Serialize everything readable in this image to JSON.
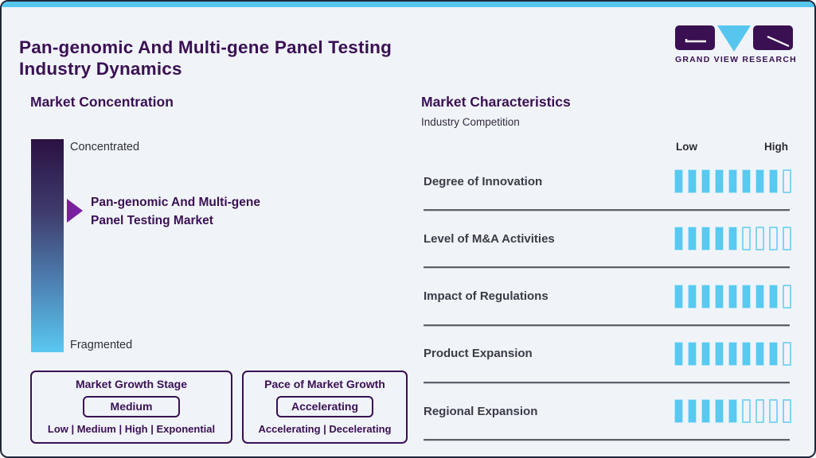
{
  "page": {
    "title_line1": "Pan-genomic And Multi-gene Panel Testing",
    "title_line2": "Industry Dynamics"
  },
  "logo": {
    "brand": "GRAND VIEW RESEARCH",
    "g_block": "logo-g-block",
    "v_mark": "logo-v-triangle",
    "r_block": "logo-r-block"
  },
  "colors": {
    "accent_blue": "#56c6ee",
    "brand_purple": "#3a1053",
    "segment_blue": "#58c9f1",
    "arrow_purple": "#7a1fa2",
    "gradient_top": "#2b1143",
    "gradient_bottom": "#5ac8f1",
    "divider_gray": "#5e5f69",
    "background": "#f0f4f9"
  },
  "concentration": {
    "heading": "Market Concentration",
    "top_label": "Concentrated",
    "bottom_label": "Fragmented",
    "marker_line1": "Pan-genomic And Multi-gene",
    "marker_line2": "Panel Testing Market"
  },
  "growth_stage_box": {
    "title": "Market Growth Stage",
    "value": "Medium",
    "options": "Low | Medium | High | Exponential"
  },
  "pace_box": {
    "title": "Pace of Market Growth",
    "value": "Accelerating",
    "options": "Accelerating | Decelerating"
  },
  "characteristics": {
    "heading": "Market Characteristics",
    "subheading": "Industry Competition",
    "scale_low": "Low",
    "scale_high": "High",
    "segments_total": 9,
    "rows": [
      {
        "label": "Degree of Innovation",
        "filled": 8
      },
      {
        "label": "Level of M&A Activities",
        "filled": 5
      },
      {
        "label": "Impact of Regulations",
        "filled": 8
      },
      {
        "label": "Product Expansion",
        "filled": 8
      },
      {
        "label": "Regional Expansion",
        "filled": 5
      }
    ]
  },
  "chart_data": {
    "type": "bar",
    "title": "Market Characteristics",
    "subtitle": "Industry Competition",
    "orientation": "horizontal-segmented",
    "categories": [
      "Degree of Innovation",
      "Level of M&A Activities",
      "Impact of Regulations",
      "Product Expansion",
      "Regional Expansion"
    ],
    "values": [
      8,
      5,
      8,
      8,
      5
    ],
    "value_range": [
      0,
      9
    ],
    "scale_labels": [
      "Low",
      "High"
    ],
    "legend_position": "none",
    "grid": false
  }
}
